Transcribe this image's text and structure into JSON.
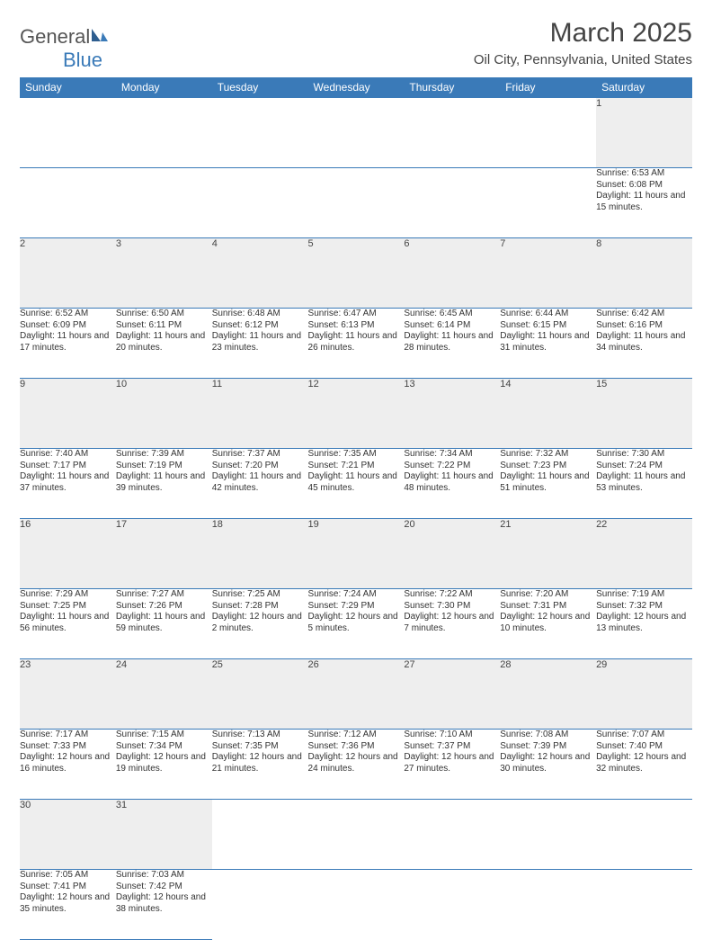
{
  "logo": {
    "word1": "General",
    "word2": "Blue"
  },
  "title": "March 2025",
  "location": "Oil City, Pennsylvania, United States",
  "header_bg": "#3a7ab8",
  "header_fg": "#ffffff",
  "daynum_bg": "#eeeeee",
  "border_color": "#3a7ab8",
  "days": [
    "Sunday",
    "Monday",
    "Tuesday",
    "Wednesday",
    "Thursday",
    "Friday",
    "Saturday"
  ],
  "weeks": [
    [
      null,
      null,
      null,
      null,
      null,
      null,
      {
        "n": "1",
        "sr": "Sunrise: 6:53 AM",
        "ss": "Sunset: 6:08 PM",
        "dl": "Daylight: 11 hours and 15 minutes."
      }
    ],
    [
      {
        "n": "2",
        "sr": "Sunrise: 6:52 AM",
        "ss": "Sunset: 6:09 PM",
        "dl": "Daylight: 11 hours and 17 minutes."
      },
      {
        "n": "3",
        "sr": "Sunrise: 6:50 AM",
        "ss": "Sunset: 6:11 PM",
        "dl": "Daylight: 11 hours and 20 minutes."
      },
      {
        "n": "4",
        "sr": "Sunrise: 6:48 AM",
        "ss": "Sunset: 6:12 PM",
        "dl": "Daylight: 11 hours and 23 minutes."
      },
      {
        "n": "5",
        "sr": "Sunrise: 6:47 AM",
        "ss": "Sunset: 6:13 PM",
        "dl": "Daylight: 11 hours and 26 minutes."
      },
      {
        "n": "6",
        "sr": "Sunrise: 6:45 AM",
        "ss": "Sunset: 6:14 PM",
        "dl": "Daylight: 11 hours and 28 minutes."
      },
      {
        "n": "7",
        "sr": "Sunrise: 6:44 AM",
        "ss": "Sunset: 6:15 PM",
        "dl": "Daylight: 11 hours and 31 minutes."
      },
      {
        "n": "8",
        "sr": "Sunrise: 6:42 AM",
        "ss": "Sunset: 6:16 PM",
        "dl": "Daylight: 11 hours and 34 minutes."
      }
    ],
    [
      {
        "n": "9",
        "sr": "Sunrise: 7:40 AM",
        "ss": "Sunset: 7:17 PM",
        "dl": "Daylight: 11 hours and 37 minutes."
      },
      {
        "n": "10",
        "sr": "Sunrise: 7:39 AM",
        "ss": "Sunset: 7:19 PM",
        "dl": "Daylight: 11 hours and 39 minutes."
      },
      {
        "n": "11",
        "sr": "Sunrise: 7:37 AM",
        "ss": "Sunset: 7:20 PM",
        "dl": "Daylight: 11 hours and 42 minutes."
      },
      {
        "n": "12",
        "sr": "Sunrise: 7:35 AM",
        "ss": "Sunset: 7:21 PM",
        "dl": "Daylight: 11 hours and 45 minutes."
      },
      {
        "n": "13",
        "sr": "Sunrise: 7:34 AM",
        "ss": "Sunset: 7:22 PM",
        "dl": "Daylight: 11 hours and 48 minutes."
      },
      {
        "n": "14",
        "sr": "Sunrise: 7:32 AM",
        "ss": "Sunset: 7:23 PM",
        "dl": "Daylight: 11 hours and 51 minutes."
      },
      {
        "n": "15",
        "sr": "Sunrise: 7:30 AM",
        "ss": "Sunset: 7:24 PM",
        "dl": "Daylight: 11 hours and 53 minutes."
      }
    ],
    [
      {
        "n": "16",
        "sr": "Sunrise: 7:29 AM",
        "ss": "Sunset: 7:25 PM",
        "dl": "Daylight: 11 hours and 56 minutes."
      },
      {
        "n": "17",
        "sr": "Sunrise: 7:27 AM",
        "ss": "Sunset: 7:26 PM",
        "dl": "Daylight: 11 hours and 59 minutes."
      },
      {
        "n": "18",
        "sr": "Sunrise: 7:25 AM",
        "ss": "Sunset: 7:28 PM",
        "dl": "Daylight: 12 hours and 2 minutes."
      },
      {
        "n": "19",
        "sr": "Sunrise: 7:24 AM",
        "ss": "Sunset: 7:29 PM",
        "dl": "Daylight: 12 hours and 5 minutes."
      },
      {
        "n": "20",
        "sr": "Sunrise: 7:22 AM",
        "ss": "Sunset: 7:30 PM",
        "dl": "Daylight: 12 hours and 7 minutes."
      },
      {
        "n": "21",
        "sr": "Sunrise: 7:20 AM",
        "ss": "Sunset: 7:31 PM",
        "dl": "Daylight: 12 hours and 10 minutes."
      },
      {
        "n": "22",
        "sr": "Sunrise: 7:19 AM",
        "ss": "Sunset: 7:32 PM",
        "dl": "Daylight: 12 hours and 13 minutes."
      }
    ],
    [
      {
        "n": "23",
        "sr": "Sunrise: 7:17 AM",
        "ss": "Sunset: 7:33 PM",
        "dl": "Daylight: 12 hours and 16 minutes."
      },
      {
        "n": "24",
        "sr": "Sunrise: 7:15 AM",
        "ss": "Sunset: 7:34 PM",
        "dl": "Daylight: 12 hours and 19 minutes."
      },
      {
        "n": "25",
        "sr": "Sunrise: 7:13 AM",
        "ss": "Sunset: 7:35 PM",
        "dl": "Daylight: 12 hours and 21 minutes."
      },
      {
        "n": "26",
        "sr": "Sunrise: 7:12 AM",
        "ss": "Sunset: 7:36 PM",
        "dl": "Daylight: 12 hours and 24 minutes."
      },
      {
        "n": "27",
        "sr": "Sunrise: 7:10 AM",
        "ss": "Sunset: 7:37 PM",
        "dl": "Daylight: 12 hours and 27 minutes."
      },
      {
        "n": "28",
        "sr": "Sunrise: 7:08 AM",
        "ss": "Sunset: 7:39 PM",
        "dl": "Daylight: 12 hours and 30 minutes."
      },
      {
        "n": "29",
        "sr": "Sunrise: 7:07 AM",
        "ss": "Sunset: 7:40 PM",
        "dl": "Daylight: 12 hours and 32 minutes."
      }
    ],
    [
      {
        "n": "30",
        "sr": "Sunrise: 7:05 AM",
        "ss": "Sunset: 7:41 PM",
        "dl": "Daylight: 12 hours and 35 minutes."
      },
      {
        "n": "31",
        "sr": "Sunrise: 7:03 AM",
        "ss": "Sunset: 7:42 PM",
        "dl": "Daylight: 12 hours and 38 minutes."
      },
      null,
      null,
      null,
      null,
      null
    ]
  ]
}
